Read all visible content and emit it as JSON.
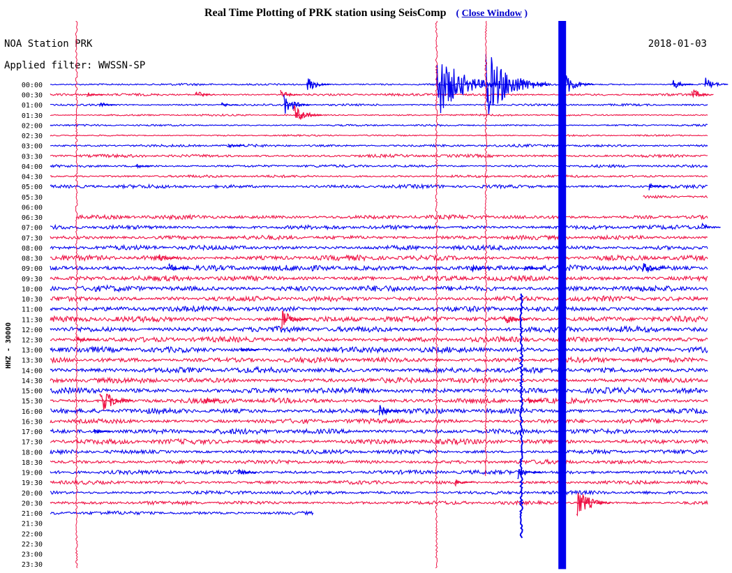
{
  "page": {
    "title": "Real Time Plotting of PRK station using SeisComp",
    "close_paren_open": "(",
    "close_label": "Close Window",
    "close_paren_close": ")"
  },
  "plot": {
    "station_label": "NOA Station PRK",
    "date": "2018-01-03",
    "filter_label": "Applied filter: WWSSN-SP",
    "channel_label": "HHZ - 30000"
  },
  "colors": {
    "trace_even": "#0000ee",
    "trace_odd": "#ee1144",
    "background": "#ffffff",
    "text": "#000000"
  },
  "chart_data": {
    "type": "line",
    "title": "NOA Station PRK",
    "subtitle": "Applied filter: WWSSN-SP",
    "ylabel": "HHZ - 30000",
    "ticks": [
      "00:00",
      "00:30",
      "01:00",
      "01:30",
      "02:00",
      "02:30",
      "03:00",
      "03:30",
      "04:00",
      "04:30",
      "05:00",
      "05:30",
      "06:00",
      "06:30",
      "07:00",
      "07:30",
      "08:00",
      "08:30",
      "09:00",
      "09:30",
      "10:00",
      "10:30",
      "11:00",
      "11:30",
      "12:00",
      "12:30",
      "13:00",
      "13:30",
      "14:00",
      "14:30",
      "15:00",
      "15:30",
      "16:00",
      "16:30",
      "17:00",
      "17:30",
      "18:00",
      "18:30",
      "19:00",
      "19:30",
      "20:00",
      "20:30",
      "21:00",
      "21:30",
      "22:00",
      "22:30",
      "23:00",
      "23:30"
    ],
    "active_rows": 43,
    "last_row_fraction": 0.4,
    "gap_rows": [
      {
        "row": 11,
        "from": 0.0,
        "to": 0.9
      },
      {
        "row": 12,
        "from": 0.0,
        "to": 1.0
      },
      {
        "row": 13,
        "from": 0.0,
        "to": 0.04
      }
    ],
    "noise_levels": [
      0.08,
      0.09,
      0.08,
      0.07,
      0.07,
      0.06,
      0.1,
      0.12,
      0.1,
      0.1,
      0.14,
      0.12,
      0.12,
      0.16,
      0.16,
      0.16,
      0.18,
      0.2,
      0.22,
      0.2,
      0.22,
      0.2,
      0.2,
      0.22,
      0.22,
      0.2,
      0.22,
      0.2,
      0.22,
      0.2,
      0.22,
      0.2,
      0.2,
      0.18,
      0.2,
      0.2,
      0.16,
      0.16,
      0.16,
      0.14,
      0.14,
      0.14,
      0.14,
      0.12
    ],
    "events": [
      {
        "row": 0,
        "time": 0.39,
        "amp": 1.6
      },
      {
        "row": 0,
        "time": 0.587,
        "amp": 7.0
      },
      {
        "row": 0,
        "time": 0.662,
        "amp": 7.0
      },
      {
        "row": 0,
        "time": 0.78,
        "amp": 2.5
      },
      {
        "row": 0,
        "time": 0.945,
        "amp": 1.2
      },
      {
        "row": 0,
        "time": 0.995,
        "amp": 1.5
      },
      {
        "row": 1,
        "time": 0.22,
        "amp": 1.0
      },
      {
        "row": 1,
        "time": 0.35,
        "amp": 1.0
      },
      {
        "row": 1,
        "time": 0.055,
        "amp": 0.6
      },
      {
        "row": 1,
        "time": 0.975,
        "amp": 1.3
      },
      {
        "row": 2,
        "time": 0.355,
        "amp": 2.0
      },
      {
        "row": 2,
        "time": 0.075,
        "amp": 0.7
      },
      {
        "row": 2,
        "time": 0.26,
        "amp": 0.6
      },
      {
        "row": 3,
        "time": 0.37,
        "amp": 2.2
      },
      {
        "row": 6,
        "time": 0.27,
        "amp": 0.6
      },
      {
        "row": 8,
        "time": 0.13,
        "amp": 0.6
      },
      {
        "row": 10,
        "time": 0.91,
        "amp": 0.8
      },
      {
        "row": 14,
        "time": 0.99,
        "amp": 0.9
      },
      {
        "row": 17,
        "time": 0.165,
        "amp": 0.9
      },
      {
        "row": 18,
        "time": 0.18,
        "amp": 1.0
      },
      {
        "row": 18,
        "time": 0.64,
        "amp": 0.9
      },
      {
        "row": 18,
        "time": 0.9,
        "amp": 1.5
      },
      {
        "row": 18,
        "time": 0.72,
        "amp": 0.9
      },
      {
        "row": 23,
        "time": 0.35,
        "amp": 2.2
      },
      {
        "row": 23,
        "time": 0.69,
        "amp": 1.6
      },
      {
        "row": 25,
        "time": 0.04,
        "amp": 0.9
      },
      {
        "row": 26,
        "time": 0.29,
        "amp": 0.7
      },
      {
        "row": 31,
        "time": 0.075,
        "amp": 3.0
      },
      {
        "row": 31,
        "time": 0.725,
        "amp": 0.7
      },
      {
        "row": 31,
        "time": 0.235,
        "amp": 0.6
      },
      {
        "row": 32,
        "time": 0.5,
        "amp": 1.6
      },
      {
        "row": 34,
        "time": 0.065,
        "amp": 0.8
      },
      {
        "row": 38,
        "time": 0.285,
        "amp": 0.9
      },
      {
        "row": 38,
        "time": 0.71,
        "amp": 1.6
      },
      {
        "row": 39,
        "time": 0.615,
        "amp": 0.7
      },
      {
        "row": 41,
        "time": 0.8,
        "amp": 3.0
      }
    ],
    "vertical_lines": [
      {
        "time": 0.04,
        "color_index": 1,
        "from_row": 0,
        "to_row": 47,
        "width": 1
      },
      {
        "time": 0.587,
        "color_index": 1,
        "from_row": 0,
        "to_row": 47,
        "width": 1
      },
      {
        "time": 0.662,
        "color_index": 1,
        "from_row": 0,
        "to_row": 38,
        "width": 1
      },
      {
        "time": 0.716,
        "color_index": 0,
        "from_row": 21,
        "to_row": 44,
        "width": 2
      },
      {
        "time": 0.778,
        "color_index": 0,
        "from_row": 0,
        "to_row": 47,
        "width": 11
      }
    ]
  }
}
